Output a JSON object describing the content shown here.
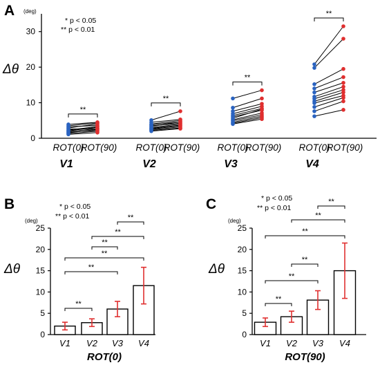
{
  "legend": {
    "p05": "*  p < 0.05",
    "p01": "**  p < 0.01"
  },
  "unit": "(deg)",
  "ylabel": "Δθ",
  "chart_data": [
    {
      "panel": "A",
      "type": "scatter",
      "ylabel": "Δθ",
      "unit": "(deg)",
      "ylim": [
        0,
        35
      ],
      "yticks": [
        0,
        10,
        20,
        30
      ],
      "conditions": [
        "ROT(0)",
        "ROT(90)"
      ],
      "colors": {
        "ROT(0)": "#2a63c0",
        "ROT(90)": "#e02f2f"
      },
      "groups": [
        {
          "name": "V1",
          "sig": "**",
          "pairs": [
            [
              3.9,
              4.5
            ],
            [
              3.5,
              4.3
            ],
            [
              3.2,
              3.6
            ],
            [
              2.9,
              4.0
            ],
            [
              2.6,
              2.7
            ],
            [
              2.3,
              3.3
            ],
            [
              2.1,
              3.1
            ],
            [
              1.9,
              2.7
            ],
            [
              1.7,
              2.2
            ],
            [
              1.5,
              2.5
            ],
            [
              1.3,
              2.0
            ],
            [
              1.1,
              1.6
            ]
          ]
        },
        {
          "name": "V2",
          "sig": "**",
          "pairs": [
            [
              5.1,
              7.6
            ],
            [
              4.5,
              5.3
            ],
            [
              4.0,
              5.0
            ],
            [
              3.8,
              4.6
            ],
            [
              3.5,
              4.2
            ],
            [
              3.3,
              4.6
            ],
            [
              3.0,
              4.0
            ],
            [
              2.8,
              3.7
            ],
            [
              2.6,
              3.5
            ],
            [
              2.4,
              3.2
            ],
            [
              2.2,
              2.9
            ],
            [
              2.0,
              2.7
            ]
          ]
        },
        {
          "name": "V3",
          "sig": "**",
          "pairs": [
            [
              11.2,
              13.5
            ],
            [
              8.6,
              11.2
            ],
            [
              7.6,
              9.7
            ],
            [
              6.9,
              9.0
            ],
            [
              6.4,
              8.4
            ],
            [
              6.0,
              7.9
            ],
            [
              5.6,
              8.2
            ],
            [
              5.2,
              7.1
            ],
            [
              4.9,
              6.6
            ],
            [
              4.5,
              6.2
            ],
            [
              4.2,
              5.8
            ],
            [
              4.0,
              5.4
            ]
          ]
        },
        {
          "name": "V4",
          "sig": "**",
          "pairs": [
            [
              20.8,
              31.5
            ],
            [
              19.8,
              28.0
            ],
            [
              15.2,
              19.5
            ],
            [
              14.0,
              17.2
            ],
            [
              12.9,
              15.6
            ],
            [
              11.7,
              14.5
            ],
            [
              11.1,
              13.6
            ],
            [
              10.4,
              12.9
            ],
            [
              9.9,
              12.0
            ],
            [
              8.8,
              11.4
            ],
            [
              7.6,
              10.4
            ],
            [
              6.2,
              8.0
            ]
          ]
        }
      ]
    },
    {
      "panel": "B",
      "type": "bar",
      "xlabel": "ROT(0)",
      "ylabel": "Δθ",
      "unit": "(deg)",
      "ylim": [
        0,
        25
      ],
      "yticks": [
        0,
        5,
        10,
        15,
        20,
        25
      ],
      "categories": [
        "V1",
        "V2",
        "V3",
        "V4"
      ],
      "values": [
        2.0,
        2.8,
        6.0,
        11.5
      ],
      "errors": [
        0.9,
        0.9,
        1.8,
        4.3
      ],
      "error_color": "#e02f2f",
      "comparisons": [
        {
          "pair": [
            "V3",
            "V4"
          ],
          "sig": "**"
        },
        {
          "pair": [
            "V2",
            "V4"
          ],
          "sig": "**"
        },
        {
          "pair": [
            "V2",
            "V3"
          ],
          "sig": "**"
        },
        {
          "pair": [
            "V1",
            "V4"
          ],
          "sig": "**"
        },
        {
          "pair": [
            "V1",
            "V3"
          ],
          "sig": "**"
        },
        {
          "pair": [
            "V1",
            "V2"
          ],
          "sig": "**"
        }
      ]
    },
    {
      "panel": "C",
      "type": "bar",
      "xlabel": "ROT(90)",
      "ylabel": "Δθ",
      "unit": "(deg)",
      "ylim": [
        0,
        25
      ],
      "yticks": [
        0,
        5,
        10,
        15,
        20,
        25
      ],
      "categories": [
        "V1",
        "V2",
        "V3",
        "V4"
      ],
      "values": [
        2.9,
        4.2,
        8.1,
        15.0
      ],
      "errors": [
        1.0,
        1.3,
        2.2,
        6.5
      ],
      "error_color": "#e02f2f",
      "comparisons": [
        {
          "pair": [
            "V3",
            "V4"
          ],
          "sig": "**"
        },
        {
          "pair": [
            "V2",
            "V4"
          ],
          "sig": "**"
        },
        {
          "pair": [
            "V1",
            "V4"
          ],
          "sig": "**"
        },
        {
          "pair": [
            "V2",
            "V3"
          ],
          "sig": "**"
        },
        {
          "pair": [
            "V1",
            "V3"
          ],
          "sig": "**"
        },
        {
          "pair": [
            "V1",
            "V2"
          ],
          "sig": "**"
        }
      ]
    }
  ]
}
